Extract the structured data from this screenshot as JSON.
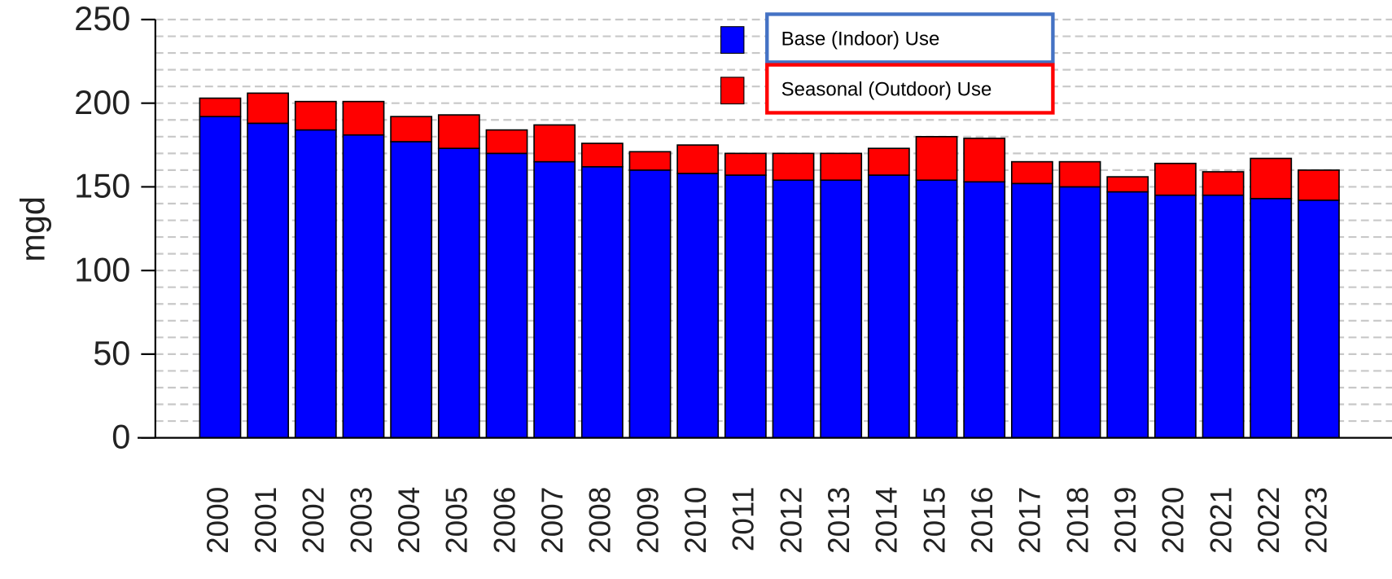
{
  "chart_data": {
    "type": "stacked_bar",
    "ylabel": "mgd",
    "categories": [
      "2000",
      "2001",
      "2002",
      "2003",
      "2004",
      "2005",
      "2006",
      "2007",
      "2008",
      "2009",
      "2010",
      "2011",
      "2012",
      "2013",
      "2014",
      "2015",
      "2016",
      "2017",
      "2018",
      "2019",
      "2020",
      "2021",
      "2022",
      "2023"
    ],
    "series": [
      {
        "name": "Base (Indoor) Use",
        "color": "#0000ff",
        "border": "#4472c4",
        "values": [
          192,
          188,
          184,
          181,
          177,
          173,
          170,
          165,
          162,
          160,
          158,
          157,
          154,
          154,
          157,
          154,
          153,
          152,
          150,
          147,
          145,
          145,
          143,
          142
        ]
      },
      {
        "name": "Seasonal (Outdoor) Use",
        "color": "#ff0000",
        "border": "#ff0000",
        "values": [
          11,
          18,
          17,
          20,
          15,
          20,
          14,
          22,
          14,
          11,
          17,
          13,
          16,
          16,
          16,
          26,
          26,
          13,
          15,
          9,
          19,
          14,
          24,
          18
        ]
      }
    ],
    "ylim": [
      0,
      250
    ],
    "yticks": [
      0,
      50,
      100,
      150,
      200,
      250
    ],
    "grid": true,
    "grid_values": [
      10,
      20,
      30,
      40,
      50,
      60,
      70,
      80,
      90,
      100,
      110,
      120,
      130,
      140,
      150,
      160,
      170,
      180,
      190,
      200,
      210,
      220,
      230,
      240,
      250
    ]
  }
}
